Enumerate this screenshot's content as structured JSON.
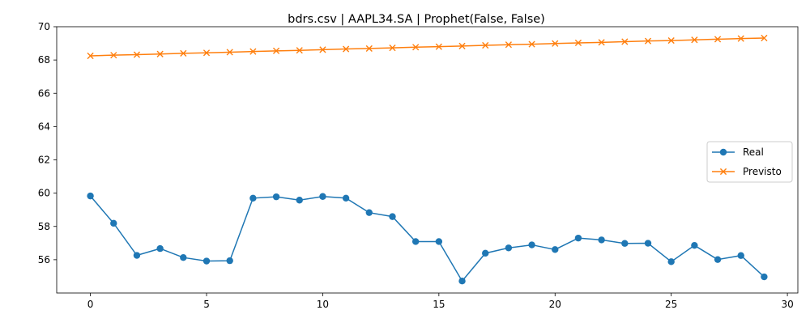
{
  "chart_data": {
    "type": "line",
    "title": "bdrs.csv | AAPL34.SA | Prophet(False, False)",
    "xlabel": "",
    "ylabel": "",
    "xlim": [
      -1.45,
      30.45
    ],
    "ylim": [
      54.0,
      70.0
    ],
    "xticks": [
      0,
      5,
      10,
      15,
      20,
      25,
      30
    ],
    "yticks": [
      56,
      58,
      60,
      62,
      64,
      66,
      68,
      70
    ],
    "grid": false,
    "legend_position": "center-right",
    "x": [
      0,
      1,
      2,
      3,
      4,
      5,
      6,
      7,
      8,
      9,
      10,
      11,
      12,
      13,
      14,
      15,
      16,
      17,
      18,
      19,
      20,
      21,
      22,
      23,
      24,
      25,
      26,
      27,
      28,
      29
    ],
    "series": [
      {
        "name": "Real",
        "color": "#1f77b4",
        "marker": "circle",
        "values": [
          59.83,
          58.19,
          56.26,
          56.67,
          56.13,
          55.92,
          55.94,
          59.7,
          59.78,
          59.58,
          59.8,
          59.7,
          58.83,
          58.59,
          57.09,
          57.09,
          54.72,
          56.39,
          56.71,
          56.89,
          56.61,
          57.3,
          57.19,
          56.98,
          56.99,
          55.88,
          56.86,
          56.01,
          56.25,
          54.97
        ]
      },
      {
        "name": "Previsto",
        "color": "#ff7f0e",
        "marker": "x",
        "values": [
          68.25,
          68.29,
          68.32,
          68.36,
          68.4,
          68.43,
          68.47,
          68.51,
          68.55,
          68.58,
          68.62,
          68.66,
          68.69,
          68.73,
          68.77,
          68.8,
          68.84,
          68.88,
          68.92,
          68.95,
          68.99,
          69.03,
          69.06,
          69.1,
          69.14,
          69.17,
          69.21,
          69.25,
          69.29,
          69.32
        ]
      }
    ]
  }
}
